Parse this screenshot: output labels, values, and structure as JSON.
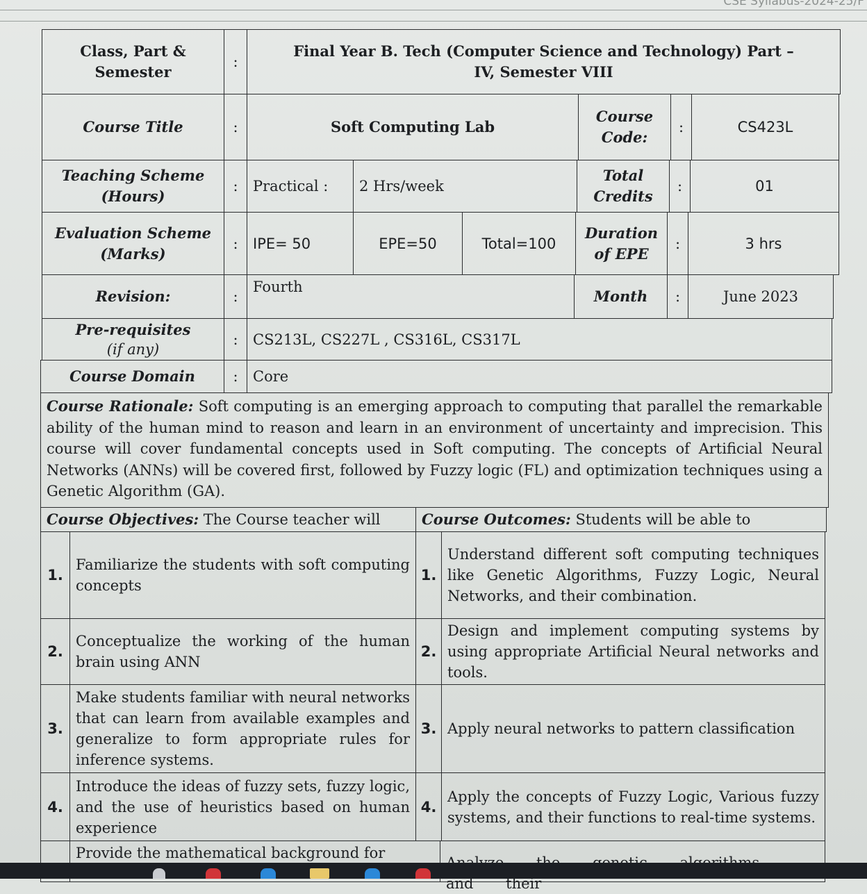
{
  "header_fragment": "CSE Syllabus-2024-25/F",
  "rows": {
    "class": {
      "label": "Class, Part & Semester",
      "colon": ":",
      "value": "Final Year B. Tech (Computer Science and Technology) Part –IV, Semester VIII"
    },
    "title": {
      "label": "Course Title",
      "colon": ":",
      "value": "Soft Computing Lab",
      "code_label": "Course Code:",
      "code": "CS423L"
    },
    "teaching": {
      "label": "Teaching Scheme (Hours)",
      "colon": ":",
      "practical_label": "Practical :",
      "practical": "2 Hrs/week",
      "credits_label": "Total Credits",
      "credits": "01"
    },
    "evaluation": {
      "label": "Evaluation Scheme (Marks)",
      "colon": ":",
      "ipe": "IPE= 50",
      "epe": "EPE=50",
      "total": "Total=100",
      "duration_label": "Duration of EPE",
      "duration": "3 hrs"
    },
    "revision": {
      "label": "Revision:",
      "colon": ":",
      "value": "Fourth",
      "month_label": "Month",
      "month": "June 2023"
    },
    "prereq": {
      "label": "Pre-requisites",
      "sublabel": "(if any)",
      "colon": ":",
      "value": "CS213L, CS227L , CS316L, CS317L"
    },
    "domain": {
      "label": "Course Domain",
      "colon": ":",
      "value": "Core"
    }
  },
  "rationale": {
    "label": "Course Rationale:",
    "text": " Soft computing is an emerging approach to computing that parallel the remarkable ability of the human mind to reason and learn in an environment of uncertainty and imprecision. This course will cover fundamental concepts used in Soft computing. The concepts of Artificial Neural Networks (ANNs) will be covered first, followed by Fuzzy logic (FL) and optimization techniques using a Genetic Algorithm (GA)."
  },
  "objectives": {
    "label": "Course Objectives:",
    "text": " The Course teacher will",
    "items": [
      {
        "num": "1.",
        "text": "Familiarize the students with soft computing concepts"
      },
      {
        "num": "2.",
        "text": "Conceptualize the working of the human brain using ANN"
      },
      {
        "num": "3.",
        "text": "Make students familiar with neural networks that can learn from available examples and generalize to form appropriate rules for inference systems."
      },
      {
        "num": "4.",
        "text": "Introduce the ideas of fuzzy sets, fuzzy logic, and the use of heuristics based on human experience"
      },
      {
        "num": "",
        "text": "Provide the mathematical background for"
      }
    ]
  },
  "outcomes": {
    "label": "Course Outcomes:",
    "text": " Students will be able to",
    "items": [
      {
        "num": "1.",
        "text": "Understand different soft computing techniques like Genetic Algorithms, Fuzzy Logic, Neural Networks, and their combination."
      },
      {
        "num": "2.",
        "text": "Design and implement computing systems by using appropriate Artificial Neural networks and tools."
      },
      {
        "num": "3.",
        "text": "Apply neural networks to pattern classification"
      },
      {
        "num": "4.",
        "text": "Apply the concepts of Fuzzy Logic, Various fuzzy systems, and their functions to real-time systems."
      },
      {
        "num": "",
        "text": "Analyze the genetic algorithms and their"
      }
    ]
  }
}
